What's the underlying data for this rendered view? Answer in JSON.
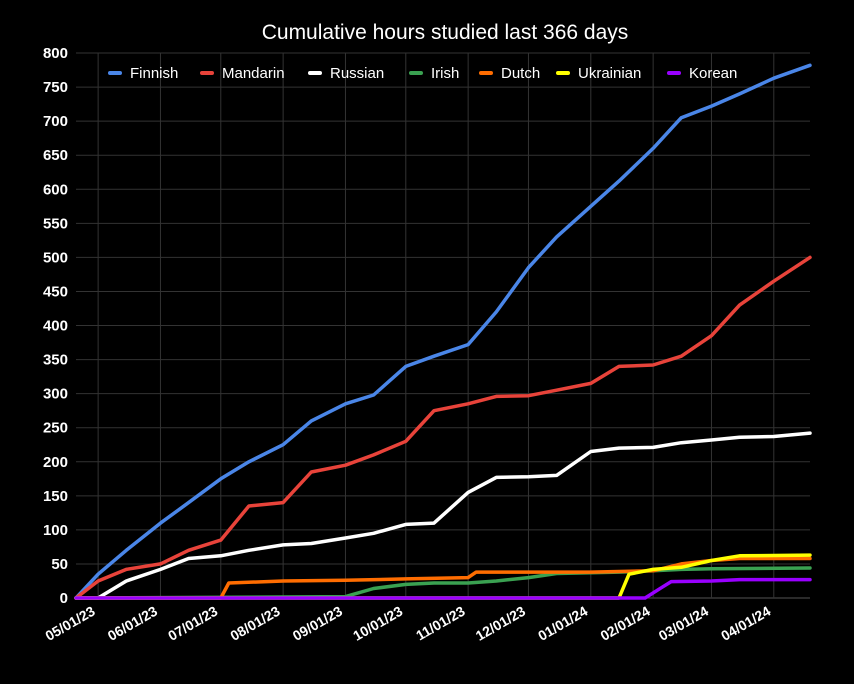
{
  "chart_data": {
    "type": "line",
    "title": "Cumulative hours studied last 366 days",
    "xlabel": "",
    "ylabel": "",
    "ylim": [
      0,
      800
    ],
    "yticks": [
      0,
      50,
      100,
      150,
      200,
      250,
      300,
      350,
      400,
      450,
      500,
      550,
      600,
      650,
      700,
      750,
      800
    ],
    "xlim": [
      "2023-04-20",
      "2024-04-19"
    ],
    "xtick_labels": [
      "05/01/23",
      "06/01/23",
      "07/01/23",
      "08/01/23",
      "09/01/23",
      "10/01/23",
      "11/01/23",
      "12/01/23",
      "01/01/24",
      "02/01/24",
      "03/01/24",
      "04/01/24"
    ],
    "xtick_dates": [
      "2023-05-01",
      "2023-06-01",
      "2023-07-01",
      "2023-08-01",
      "2023-09-01",
      "2023-10-01",
      "2023-11-01",
      "2023-12-01",
      "2024-01-01",
      "2024-02-01",
      "2024-03-01",
      "2024-04-01"
    ],
    "grid": true,
    "legend_position": "top",
    "background": "#000000",
    "series": [
      {
        "name": "Finnish",
        "color": "#4a86e8",
        "points": [
          [
            "2023-04-20",
            0
          ],
          [
            "2023-05-01",
            35
          ],
          [
            "2023-05-15",
            70
          ],
          [
            "2023-06-01",
            110
          ],
          [
            "2023-06-15",
            140
          ],
          [
            "2023-07-01",
            175
          ],
          [
            "2023-07-15",
            200
          ],
          [
            "2023-08-01",
            225
          ],
          [
            "2023-08-15",
            260
          ],
          [
            "2023-09-01",
            285
          ],
          [
            "2023-09-15",
            298
          ],
          [
            "2023-10-01",
            340
          ],
          [
            "2023-10-15",
            355
          ],
          [
            "2023-11-01",
            372
          ],
          [
            "2023-11-15",
            420
          ],
          [
            "2023-12-01",
            485
          ],
          [
            "2023-12-15",
            530
          ],
          [
            "2024-01-01",
            575
          ],
          [
            "2024-01-15",
            612
          ],
          [
            "2024-02-01",
            660
          ],
          [
            "2024-02-15",
            705
          ],
          [
            "2024-03-01",
            722
          ],
          [
            "2024-03-15",
            740
          ],
          [
            "2024-04-01",
            763
          ],
          [
            "2024-04-19",
            782
          ]
        ]
      },
      {
        "name": "Mandarin",
        "color": "#e8433a",
        "points": [
          [
            "2023-04-20",
            0
          ],
          [
            "2023-05-01",
            25
          ],
          [
            "2023-05-15",
            42
          ],
          [
            "2023-06-01",
            50
          ],
          [
            "2023-06-15",
            70
          ],
          [
            "2023-07-01",
            85
          ],
          [
            "2023-07-15",
            135
          ],
          [
            "2023-08-01",
            140
          ],
          [
            "2023-08-15",
            185
          ],
          [
            "2023-09-01",
            195
          ],
          [
            "2023-09-15",
            210
          ],
          [
            "2023-10-01",
            230
          ],
          [
            "2023-10-15",
            275
          ],
          [
            "2023-11-01",
            285
          ],
          [
            "2023-11-15",
            296
          ],
          [
            "2023-12-01",
            297
          ],
          [
            "2023-12-15",
            305
          ],
          [
            "2024-01-01",
            315
          ],
          [
            "2024-01-15",
            340
          ],
          [
            "2024-02-01",
            342
          ],
          [
            "2024-02-15",
            355
          ],
          [
            "2024-03-01",
            385
          ],
          [
            "2024-03-15",
            430
          ],
          [
            "2024-04-01",
            465
          ],
          [
            "2024-04-19",
            500
          ]
        ]
      },
      {
        "name": "Russian",
        "color": "#ffffff",
        "points": [
          [
            "2023-04-20",
            0
          ],
          [
            "2023-05-01",
            0
          ],
          [
            "2023-05-15",
            25
          ],
          [
            "2023-06-01",
            42
          ],
          [
            "2023-06-15",
            58
          ],
          [
            "2023-07-01",
            62
          ],
          [
            "2023-07-15",
            70
          ],
          [
            "2023-08-01",
            78
          ],
          [
            "2023-08-15",
            80
          ],
          [
            "2023-09-01",
            88
          ],
          [
            "2023-09-15",
            95
          ],
          [
            "2023-10-01",
            108
          ],
          [
            "2023-10-15",
            110
          ],
          [
            "2023-11-01",
            155
          ],
          [
            "2023-11-15",
            177
          ],
          [
            "2023-12-01",
            178
          ],
          [
            "2023-12-15",
            180
          ],
          [
            "2024-01-01",
            215
          ],
          [
            "2024-01-15",
            220
          ],
          [
            "2024-02-01",
            221
          ],
          [
            "2024-02-15",
            228
          ],
          [
            "2024-03-01",
            232
          ],
          [
            "2024-03-15",
            236
          ],
          [
            "2024-04-01",
            237
          ],
          [
            "2024-04-19",
            242
          ]
        ]
      },
      {
        "name": "Irish",
        "color": "#3aa151",
        "points": [
          [
            "2023-04-20",
            0
          ],
          [
            "2023-09-01",
            2
          ],
          [
            "2023-09-15",
            14
          ],
          [
            "2023-10-01",
            20
          ],
          [
            "2023-10-15",
            22
          ],
          [
            "2023-11-01",
            22
          ],
          [
            "2023-11-15",
            25
          ],
          [
            "2023-12-01",
            30
          ],
          [
            "2023-12-15",
            36
          ],
          [
            "2024-01-01",
            37
          ],
          [
            "2024-01-15",
            38
          ],
          [
            "2024-02-01",
            40
          ],
          [
            "2024-02-15",
            42
          ],
          [
            "2024-03-01",
            43
          ],
          [
            "2024-04-19",
            44
          ]
        ]
      },
      {
        "name": "Dutch",
        "color": "#ff6d01",
        "points": [
          [
            "2023-04-20",
            0
          ],
          [
            "2023-07-01",
            0
          ],
          [
            "2023-07-05",
            22
          ],
          [
            "2023-08-01",
            25
          ],
          [
            "2023-09-01",
            26
          ],
          [
            "2023-10-01",
            28
          ],
          [
            "2023-11-01",
            30
          ],
          [
            "2023-11-05",
            38
          ],
          [
            "2023-12-01",
            38
          ],
          [
            "2024-01-01",
            38
          ],
          [
            "2024-02-01",
            40
          ],
          [
            "2024-02-15",
            50
          ],
          [
            "2024-03-01",
            55
          ],
          [
            "2024-03-15",
            58
          ],
          [
            "2024-04-19",
            58
          ]
        ]
      },
      {
        "name": "Ukrainian",
        "color": "#ffff00",
        "points": [
          [
            "2023-04-20",
            0
          ],
          [
            "2024-01-15",
            0
          ],
          [
            "2024-01-20",
            35
          ],
          [
            "2024-02-01",
            42
          ],
          [
            "2024-02-15",
            45
          ],
          [
            "2024-03-01",
            55
          ],
          [
            "2024-03-15",
            62
          ],
          [
            "2024-04-19",
            63
          ]
        ]
      },
      {
        "name": "Korean",
        "color": "#9900ff",
        "points": [
          [
            "2023-04-20",
            0
          ],
          [
            "2024-01-28",
            0
          ],
          [
            "2024-02-05",
            15
          ],
          [
            "2024-02-10",
            24
          ],
          [
            "2024-03-01",
            25
          ],
          [
            "2024-03-15",
            27
          ],
          [
            "2024-04-19",
            27
          ]
        ]
      }
    ]
  }
}
